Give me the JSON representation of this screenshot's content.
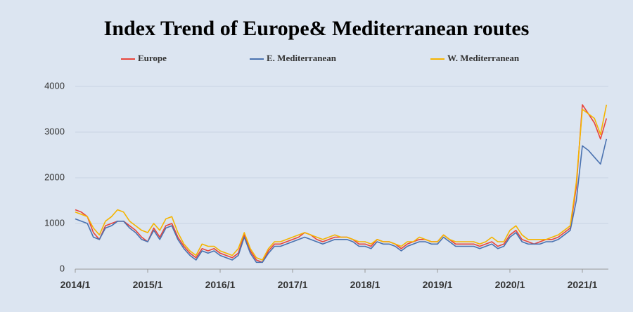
{
  "chart_data": {
    "type": "line",
    "title": "Index Trend of Europe& Mediterranean routes",
    "categories": [
      "2014/1",
      null,
      null,
      null,
      null,
      null,
      null,
      null,
      null,
      null,
      null,
      null,
      "2015/1",
      null,
      null,
      null,
      null,
      null,
      null,
      null,
      null,
      null,
      null,
      null,
      "2016/1",
      null,
      null,
      null,
      null,
      null,
      null,
      null,
      null,
      null,
      null,
      null,
      "2017/1",
      null,
      null,
      null,
      null,
      null,
      null,
      null,
      null,
      null,
      null,
      null,
      "2018/1",
      null,
      null,
      null,
      null,
      null,
      null,
      null,
      null,
      null,
      null,
      null,
      "2019/1",
      null,
      null,
      null,
      null,
      null,
      null,
      null,
      null,
      null,
      null,
      null,
      "2020/1",
      null,
      null,
      null,
      null,
      null,
      null,
      null,
      null,
      null,
      null,
      null,
      "2021/1",
      null,
      null,
      null,
      null
    ],
    "series": [
      {
        "name": "Europe",
        "color": "#e8453c",
        "values": [
          1300,
          1250,
          1150,
          800,
          650,
          950,
          1000,
          1050,
          1050,
          950,
          850,
          700,
          600,
          900,
          700,
          950,
          1000,
          700,
          500,
          350,
          250,
          450,
          400,
          450,
          350,
          300,
          250,
          350,
          750,
          400,
          200,
          150,
          400,
          550,
          550,
          600,
          650,
          700,
          800,
          750,
          650,
          600,
          650,
          700,
          700,
          700,
          650,
          550,
          550,
          500,
          650,
          600,
          600,
          550,
          450,
          550,
          600,
          650,
          650,
          600,
          600,
          750,
          650,
          550,
          550,
          550,
          550,
          500,
          550,
          600,
          500,
          550,
          750,
          850,
          650,
          600,
          550,
          600,
          650,
          650,
          700,
          800,
          900,
          1800,
          3600,
          3400,
          3200,
          2850,
          3300
        ]
      },
      {
        "name": "E. Mediterranean",
        "color": "#4a72b0",
        "values": [
          1100,
          1050,
          1000,
          700,
          650,
          900,
          950,
          1050,
          1050,
          900,
          800,
          650,
          600,
          850,
          650,
          900,
          950,
          650,
          450,
          300,
          200,
          400,
          350,
          400,
          300,
          250,
          200,
          300,
          700,
          350,
          150,
          150,
          350,
          500,
          500,
          550,
          600,
          650,
          700,
          650,
          600,
          550,
          600,
          650,
          650,
          650,
          600,
          500,
          500,
          450,
          600,
          550,
          550,
          500,
          400,
          500,
          550,
          600,
          600,
          550,
          550,
          700,
          600,
          500,
          500,
          500,
          500,
          450,
          500,
          550,
          450,
          500,
          700,
          800,
          600,
          550,
          550,
          550,
          600,
          600,
          650,
          750,
          850,
          1500,
          2700,
          2600,
          2450,
          2300,
          2850
        ]
      },
      {
        "name": "W. Mediterranean",
        "color": "#f5b400",
        "values": [
          1250,
          1200,
          1150,
          900,
          750,
          1050,
          1150,
          1300,
          1250,
          1050,
          950,
          850,
          800,
          1000,
          850,
          1100,
          1150,
          800,
          550,
          400,
          300,
          550,
          500,
          500,
          400,
          350,
          300,
          450,
          800,
          450,
          250,
          200,
          450,
          600,
          600,
          650,
          700,
          750,
          800,
          750,
          700,
          650,
          700,
          750,
          700,
          700,
          650,
          600,
          600,
          550,
          650,
          600,
          600,
          550,
          500,
          600,
          600,
          700,
          650,
          600,
          600,
          750,
          650,
          600,
          600,
          600,
          600,
          550,
          600,
          700,
          600,
          600,
          850,
          950,
          750,
          650,
          650,
          650,
          650,
          700,
          750,
          850,
          950,
          1900,
          3500,
          3400,
          3300,
          2950,
          3600
        ]
      }
    ],
    "ylim": [
      0,
      4000
    ],
    "yticks": [
      0,
      1000,
      2000,
      3000,
      4000
    ],
    "grid": true
  }
}
